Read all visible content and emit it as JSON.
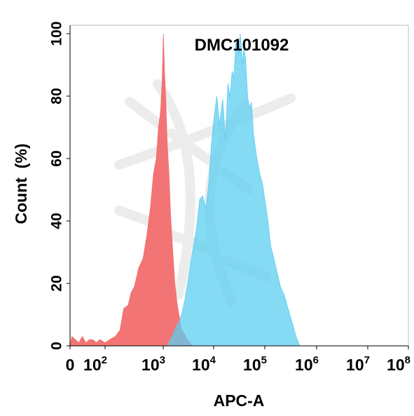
{
  "chart_data": {
    "type": "area",
    "title": "DMC101092",
    "xlabel": "APC-A",
    "ylabel": "Count  (%)",
    "x_scale": "biexponential",
    "xlim": [
      0,
      100000000
    ],
    "ylim": [
      0,
      100
    ],
    "y_ticks": [
      0,
      20,
      40,
      60,
      80,
      100
    ],
    "x_ticks": [
      {
        "value": 0,
        "base": "0",
        "exp": ""
      },
      {
        "value": 100,
        "base": "10",
        "exp": "2"
      },
      {
        "value": 1000,
        "base": "10",
        "exp": "3"
      },
      {
        "value": 10000,
        "base": "10",
        "exp": "4"
      },
      {
        "value": 100000,
        "base": "10",
        "exp": "5"
      },
      {
        "value": 1000000,
        "base": "10",
        "exp": "6"
      },
      {
        "value": 10000000,
        "base": "10",
        "exp": "7"
      },
      {
        "value": 100000000,
        "base": "10",
        "exp": "8"
      }
    ],
    "grid": false,
    "legend": false,
    "series": [
      {
        "color": "#f26d6d",
        "x": [
          0,
          5,
          15,
          25,
          35,
          45,
          55,
          65,
          75,
          85,
          100,
          120,
          150,
          180,
          210,
          250,
          280,
          320,
          380,
          450,
          520,
          600,
          680,
          760,
          830,
          900,
          960,
          1010,
          1060,
          1120,
          1200,
          1300,
          1400,
          1550,
          1700,
          1900,
          2100,
          2300,
          2600,
          3000,
          3400,
          3700
        ],
        "values": [
          0,
          3,
          2,
          1,
          3,
          1,
          2,
          2,
          1,
          2,
          1,
          2,
          3,
          5,
          12,
          13,
          17,
          19,
          25,
          28,
          35,
          44,
          55,
          60,
          70,
          75,
          85,
          100,
          88,
          80,
          65,
          55,
          42,
          30,
          20,
          13,
          9,
          5,
          4,
          2,
          1,
          0
        ]
      },
      {
        "color": "#5ccdf0",
        "x": [
          1200,
          1400,
          1600,
          1800,
          2100,
          2400,
          2700,
          3100,
          3500,
          4000,
          4600,
          5300,
          6100,
          7000,
          8000,
          9000,
          10000,
          11500,
          13000,
          15000,
          17000,
          19000,
          21000,
          23000,
          25000,
          27000,
          29000,
          31000,
          33000,
          35000,
          37000,
          39000,
          42000,
          46000,
          50000,
          55000,
          60000,
          70000,
          80000,
          90000,
          100000,
          115000,
          130000,
          150000,
          175000,
          200000,
          240000,
          280000,
          330000,
          400000,
          470000
        ],
        "values": [
          0,
          2,
          4,
          6,
          8,
          11,
          15,
          21,
          27,
          32,
          38,
          47,
          48,
          44,
          52,
          64,
          72,
          80,
          71,
          79,
          66,
          84,
          80,
          88,
          86,
          97,
          98,
          93,
          100,
          95,
          90,
          96,
          92,
          80,
          76,
          78,
          68,
          60,
          55,
          52,
          47,
          40,
          32,
          28,
          23,
          19,
          16,
          12,
          8,
          3,
          0
        ]
      }
    ]
  }
}
